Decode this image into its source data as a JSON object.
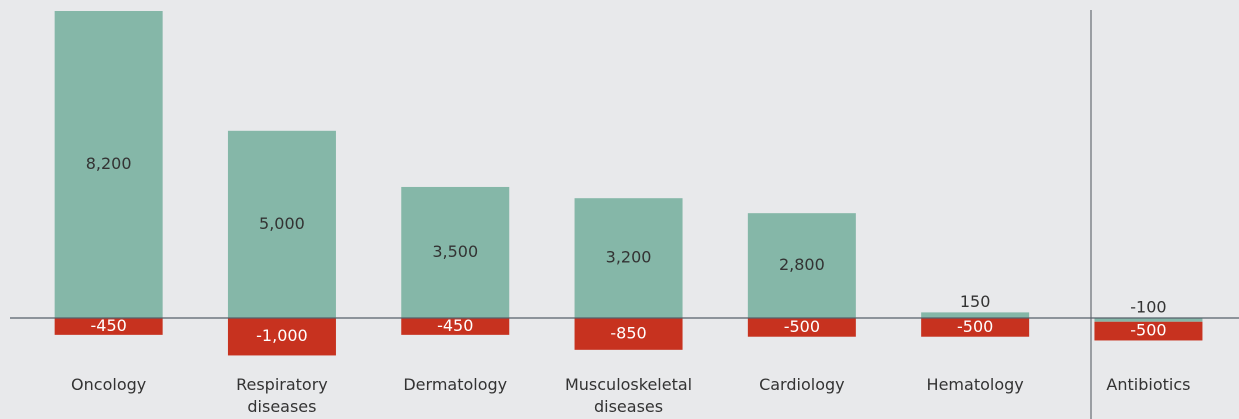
{
  "chart_data": {
    "type": "bar",
    "categories": [
      "Oncology",
      "Respiratory diseases",
      "Dermatology",
      "Musculoskeletal diseases",
      "Cardiology",
      "Hematology",
      "Antibiotics"
    ],
    "series": [
      {
        "color": "#85b7a8",
        "values": [
          8200,
          5000,
          3500,
          3200,
          2800,
          150,
          -100
        ],
        "value_labels": [
          "8,200",
          "5,000",
          "3,500",
          "3,200",
          "2,800",
          "150",
          "-100"
        ]
      },
      {
        "color": "#c7321f",
        "values": [
          -450,
          -1000,
          -450,
          -850,
          -500,
          -500,
          -500
        ],
        "value_labels": [
          "-450",
          "-1,000",
          "-450",
          "-850",
          "-500",
          "-500",
          "-500"
        ]
      }
    ]
  }
}
